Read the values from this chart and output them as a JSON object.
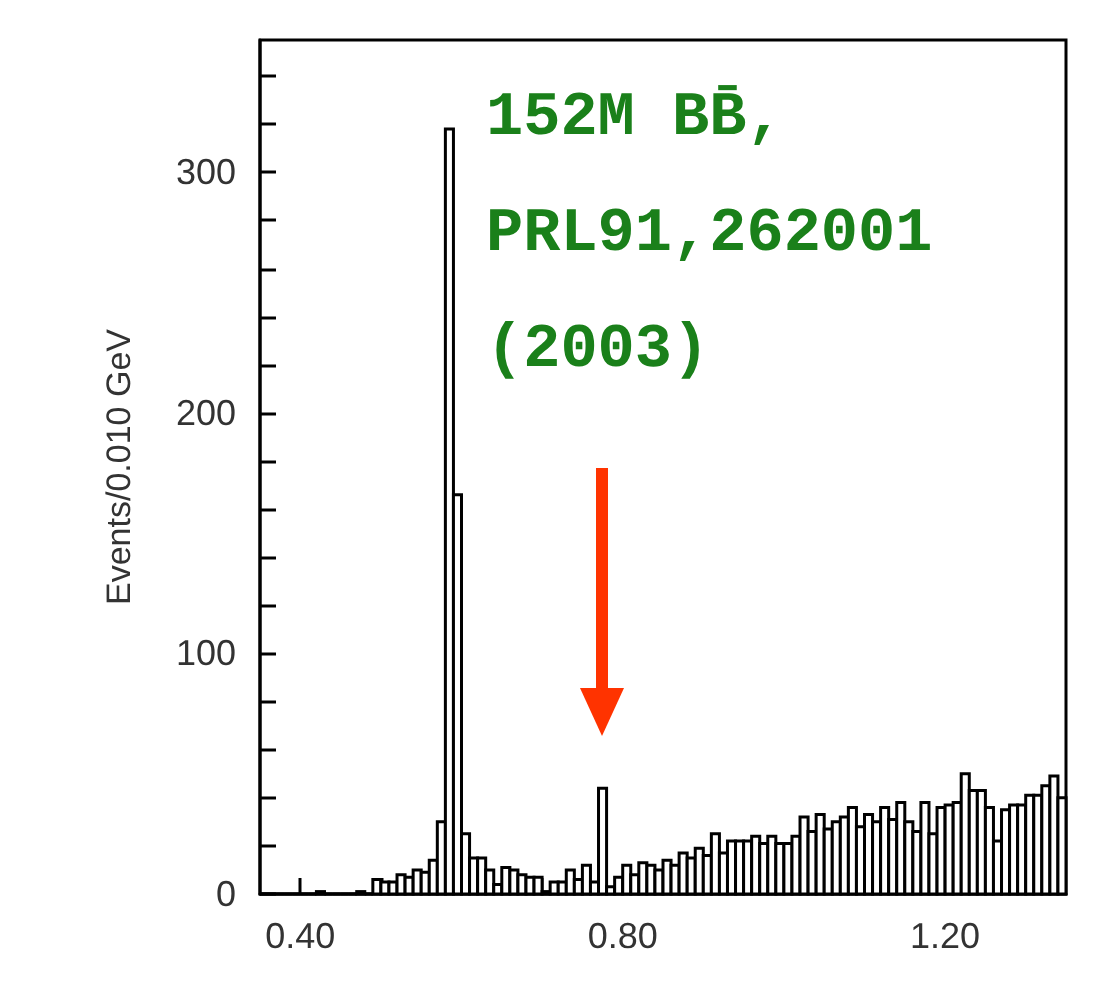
{
  "chart_data": {
    "type": "histogram",
    "ylabel": "Events/0.010 GeV",
    "annotations": [
      "152M BB̄,",
      "PRL91,262001",
      "(2003)"
    ],
    "color": "#000000",
    "bins": [
      0.35,
      0.36,
      0.37,
      0.38,
      0.39,
      0.4,
      0.41,
      0.42,
      0.43,
      0.44,
      0.45,
      0.46,
      0.47,
      0.48,
      0.49,
      0.5,
      0.51,
      0.52,
      0.53,
      0.54,
      0.55,
      0.56,
      0.57,
      0.58,
      0.59,
      0.6,
      0.61,
      0.62,
      0.63,
      0.64,
      0.65,
      0.66,
      0.67,
      0.68,
      0.69,
      0.7,
      0.71,
      0.72,
      0.73,
      0.74,
      0.75,
      0.76,
      0.77,
      0.78,
      0.79,
      0.8,
      0.81,
      0.82,
      0.83,
      0.84,
      0.85,
      0.86,
      0.87,
      0.88,
      0.89,
      0.9,
      0.91,
      0.92,
      0.93,
      0.94,
      0.95,
      0.96,
      0.97,
      0.98,
      0.99,
      1.0,
      1.01,
      1.02,
      1.03,
      1.04,
      1.05,
      1.06,
      1.07,
      1.08,
      1.09,
      1.1,
      1.11,
      1.12,
      1.13,
      1.14,
      1.15,
      1.16,
      1.17,
      1.18,
      1.19,
      1.2,
      1.21,
      1.22,
      1.23,
      1.24,
      1.25,
      1.26,
      1.27,
      1.28,
      1.29,
      1.3,
      1.31,
      1.32,
      1.33,
      1.34,
      1.35
    ],
    "values": [
      0,
      0,
      0,
      0,
      0,
      0,
      0,
      1,
      0,
      0,
      0,
      0,
      1,
      0,
      6,
      5,
      5,
      8,
      7,
      10,
      9,
      14,
      30,
      318,
      166,
      25,
      15,
      15,
      10,
      4,
      11,
      10,
      8,
      7,
      7,
      1,
      5,
      5,
      10,
      6,
      12,
      5,
      44,
      3,
      7,
      12,
      8,
      13,
      12,
      10,
      14,
      12,
      17,
      15,
      19,
      16,
      25,
      17,
      22,
      22,
      22,
      24,
      21,
      24,
      21,
      21,
      24,
      32,
      26,
      33,
      27,
      30,
      32,
      36,
      28,
      33,
      30,
      36,
      31,
      38,
      30,
      26,
      38,
      25,
      36,
      37,
      38,
      50,
      43,
      43,
      36,
      22,
      35,
      37,
      37,
      41,
      41,
      45,
      49,
      40
    ],
    "xlim": [
      0.35,
      1.35
    ],
    "xticks": [
      {
        "value": 0.4,
        "label": "0.40"
      },
      {
        "value": 0.5,
        "label": null
      },
      {
        "value": 0.6,
        "label": null
      },
      {
        "value": 0.7,
        "label": null
      },
      {
        "value": 0.8,
        "label": "0.80"
      },
      {
        "value": 0.9,
        "label": null
      },
      {
        "value": 1.0,
        "label": null
      },
      {
        "value": 1.1,
        "label": null
      },
      {
        "value": 1.2,
        "label": "1.20"
      },
      {
        "value": 1.3,
        "label": null
      }
    ],
    "ylim": [
      0,
      355
    ],
    "yticks": [
      0,
      {
        "value": 20,
        "label": null
      },
      {
        "value": 40,
        "label": null
      },
      {
        "value": 60,
        "label": null
      },
      {
        "value": 80,
        "label": null
      },
      100,
      {
        "value": 120,
        "label": null
      },
      {
        "value": 140,
        "label": null
      },
      {
        "value": 160,
        "label": null
      },
      {
        "value": 180,
        "label": null
      },
      200,
      {
        "value": 220,
        "label": null
      },
      {
        "value": 240,
        "label": null
      },
      {
        "value": 260,
        "label": null
      },
      {
        "value": 280,
        "label": null
      },
      300,
      {
        "value": 320,
        "label": null
      },
      {
        "value": 340,
        "label": null
      }
    ],
    "grid": false
  }
}
